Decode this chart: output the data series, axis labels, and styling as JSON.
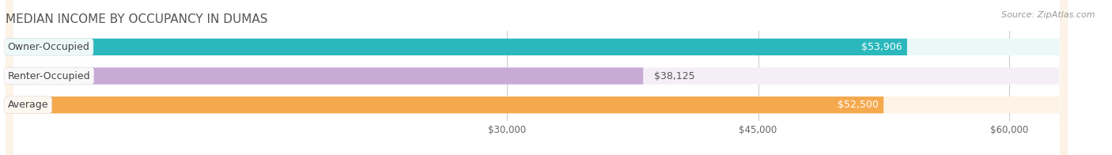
{
  "title": "MEDIAN INCOME BY OCCUPANCY IN DUMAS",
  "source": "Source: ZipAtlas.com",
  "categories": [
    "Owner-Occupied",
    "Renter-Occupied",
    "Average"
  ],
  "values": [
    53906,
    38125,
    52500
  ],
  "bar_colors": [
    "#2ab8bc",
    "#c9aad5",
    "#f5a94e"
  ],
  "bar_bg_colors": [
    "#eaf8f8",
    "#f4eff7",
    "#fdf3e6"
  ],
  "value_labels": [
    "$53,906",
    "$38,125",
    "$52,500"
  ],
  "value_label_inside": [
    true,
    false,
    true
  ],
  "value_label_colors": [
    "#ffffff",
    "#555555",
    "#ffffff"
  ],
  "xlim": [
    0,
    63500
  ],
  "xticks": [
    30000,
    45000,
    60000
  ],
  "xtick_labels": [
    "$30,000",
    "$45,000",
    "$60,000"
  ],
  "title_fontsize": 11,
  "source_fontsize": 8,
  "label_fontsize": 9,
  "value_fontsize": 9,
  "bar_height": 0.58,
  "background_color": "#ffffff",
  "title_color": "#555555",
  "source_color": "#999999",
  "cat_label_color": "#444444"
}
